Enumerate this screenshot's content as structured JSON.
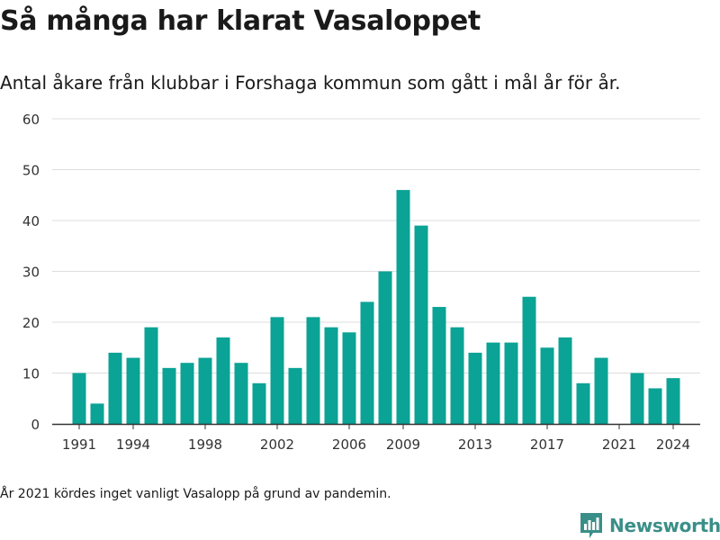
{
  "header": {
    "title": "Så många har klarat Vasaloppet",
    "subtitle": "Antal åkare från klubbar i Forshaga kommun som gått i mål år för år."
  },
  "footer": {
    "note": "År 2021 kördes inget vanligt Vasalopp på grund av pandemin.",
    "brand": "Newsworthy"
  },
  "colors": {
    "bar": "#0aa395",
    "grid": "#dddddd",
    "axis": "#333333",
    "brand": "#3a8f88"
  },
  "chart_data": {
    "type": "bar",
    "x": [
      1991,
      1992,
      1993,
      1994,
      1995,
      1996,
      1997,
      1998,
      1999,
      2000,
      2001,
      2002,
      2003,
      2004,
      2005,
      2006,
      2007,
      2008,
      2009,
      2010,
      2011,
      2012,
      2013,
      2014,
      2015,
      2016,
      2017,
      2018,
      2019,
      2020,
      2022,
      2023,
      2024
    ],
    "values": [
      10,
      4,
      14,
      13,
      19,
      11,
      12,
      13,
      17,
      12,
      8,
      21,
      11,
      21,
      19,
      18,
      24,
      30,
      46,
      39,
      23,
      19,
      14,
      16,
      16,
      25,
      15,
      17,
      8,
      13,
      10,
      7,
      9
    ],
    "xticks": [
      1991,
      1994,
      1998,
      2002,
      2006,
      2009,
      2013,
      2017,
      2021,
      2024
    ],
    "yticks": [
      0,
      10,
      20,
      30,
      40,
      50,
      60
    ],
    "ylim": [
      0,
      60
    ],
    "xlim": [
      1989.5,
      2025.5
    ],
    "grid": true,
    "xlabel": "",
    "ylabel": ""
  }
}
